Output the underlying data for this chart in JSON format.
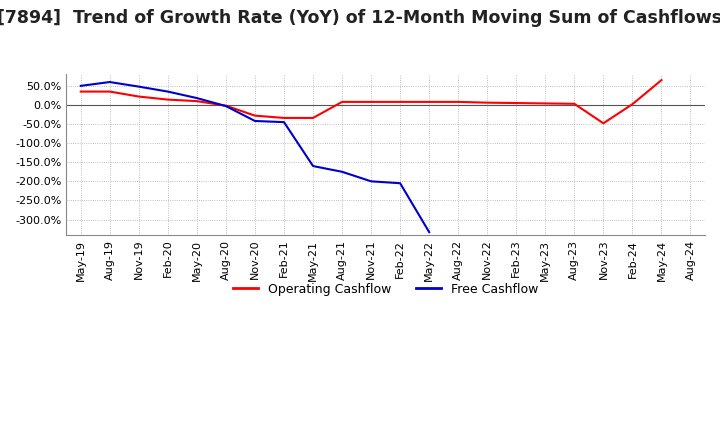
{
  "title": "[7894]  Trend of Growth Rate (YoY) of 12-Month Moving Sum of Cashflows",
  "title_fontsize": 12.5,
  "ylim": [
    -340,
    80
  ],
  "yticks": [
    50.0,
    0.0,
    -50.0,
    -100.0,
    -150.0,
    -200.0,
    -250.0,
    -300.0
  ],
  "background_color": "#ffffff",
  "plot_bg_color": "#ffffff",
  "grid_color": "#aaaaaa",
  "operating_color": "#ff0000",
  "free_color": "#0000cc",
  "legend_labels": [
    "Operating Cashflow",
    "Free Cashflow"
  ],
  "x_labels": [
    "May-19",
    "Aug-19",
    "Nov-19",
    "Feb-20",
    "May-20",
    "Aug-20",
    "Nov-20",
    "Feb-21",
    "May-21",
    "Aug-21",
    "Nov-21",
    "Feb-22",
    "May-22",
    "Aug-22",
    "Nov-22",
    "Feb-23",
    "May-23",
    "Aug-23",
    "Nov-23",
    "Feb-24",
    "May-24",
    "Aug-24"
  ],
  "operating_cashflow": [
    35,
    35,
    22,
    14,
    10,
    -2,
    -28,
    -34,
    -34,
    8,
    8,
    8,
    8,
    8,
    6,
    5,
    4,
    3,
    -48,
    2,
    65,
    null
  ],
  "free_cashflow": [
    50,
    60,
    48,
    35,
    18,
    -3,
    -42,
    -45,
    -160,
    -175,
    -200,
    -205,
    -333,
    null,
    null,
    null,
    null,
    null,
    null,
    null,
    null,
    null
  ]
}
